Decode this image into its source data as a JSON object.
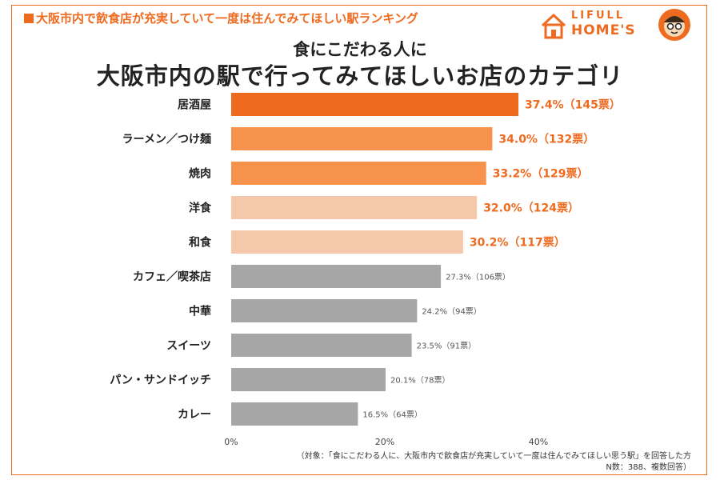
{
  "header": {
    "tag_text": "大阪市内で飲食店が充実していて一度は住んでみてほしい駅ランキング"
  },
  "logo": {
    "line1": "LIFULL",
    "line2": "HOME'S",
    "brand_color": "#ee6a1f",
    "icons": [
      "house-icon",
      "mascot-icon"
    ]
  },
  "subtitle": "食にこだわる人に",
  "title": "大阪市内の駅で行ってみてほしいお店のカテゴリ",
  "colors": {
    "accent": "#ee6a1f",
    "bar_top1": "#ee6a1f",
    "bar_top2_3": "#f6924c",
    "bar_top4_5": "#f6c8ab",
    "bar_rest": "#a6a6a6"
  },
  "chart_data": {
    "type": "bar",
    "orientation": "horizontal",
    "categories": [
      "居酒屋",
      "ラーメン／つけ麺",
      "焼肉",
      "洋食",
      "和食",
      "カフェ／喫茶店",
      "中華",
      "スイーツ",
      "パン・サンドイッチ",
      "カレー"
    ],
    "values": [
      37.4,
      34.0,
      33.2,
      32.0,
      30.2,
      27.3,
      24.2,
      23.5,
      20.1,
      16.5
    ],
    "votes": [
      145,
      132,
      129,
      124,
      117,
      106,
      94,
      91,
      78,
      64
    ],
    "data_labels": [
      "37.4%（145票）",
      "34.0%（132票）",
      "33.2%（129票）",
      "32.0%（124票）",
      "30.2%（117票）",
      "27.3%（106票）",
      "24.2%（94票）",
      "23.5%（91票）",
      "20.1%（78票）",
      "16.5%（64票）"
    ],
    "bar_colors": [
      "#ee6a1f",
      "#f6924c",
      "#f6924c",
      "#f6c8ab",
      "#f6c8ab",
      "#a6a6a6",
      "#a6a6a6",
      "#a6a6a6",
      "#a6a6a6",
      "#a6a6a6"
    ],
    "x_ticks": [
      "0%",
      "20%",
      "40%"
    ],
    "x_tick_values": [
      0,
      20,
      40
    ],
    "xlim": [
      0,
      45
    ],
    "grid": false,
    "legend": "none",
    "title": "大阪市内の駅で行ってみてほしいお店のカテゴリ",
    "subtitle": "食にこだわる人に"
  },
  "footnote": {
    "line1": "（対象：「食にこだわる人に、大阪市内で飲食店が充実していて一度は住んでみてほしい思う駅」を回答した方",
    "line2": "N数：388、複数回答）"
  }
}
